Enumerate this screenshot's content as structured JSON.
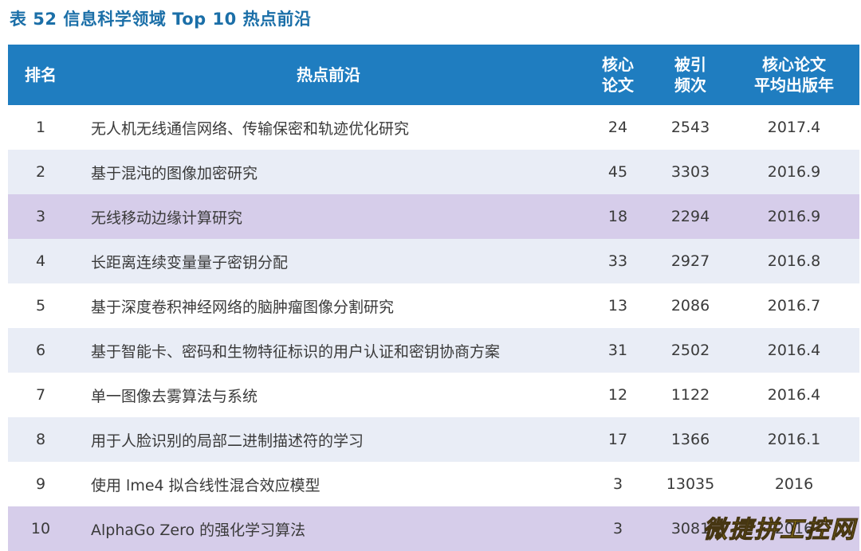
{
  "caption": "表 52 信息科学领域 Top 10 热点前沿",
  "header": {
    "rank": "排名",
    "topic": "热点前沿",
    "core_papers": "核心\n论文",
    "citations": "被引\n频次",
    "avg_year": "核心论文\n平均出版年"
  },
  "row_colors": {
    "white": "#ffffff",
    "blue": "#e9edf6",
    "purple": "#d6cdea",
    "header": "#1f7dc0"
  },
  "rows": [
    {
      "rank": "1",
      "topic": "无人机无线通信网络、传输保密和轨迹优化研究",
      "core": "24",
      "cites": "2543",
      "year": "2017.4",
      "bg": "white"
    },
    {
      "rank": "2",
      "topic": "基于混沌的图像加密研究",
      "core": "45",
      "cites": "3303",
      "year": "2016.9",
      "bg": "blue"
    },
    {
      "rank": "3",
      "topic": "无线移动边缘计算研究",
      "core": "18",
      "cites": "2294",
      "year": "2016.9",
      "bg": "purple"
    },
    {
      "rank": "4",
      "topic": "长距离连续变量量子密钥分配",
      "core": "33",
      "cites": "2927",
      "year": "2016.8",
      "bg": "blue"
    },
    {
      "rank": "5",
      "topic": "基于深度卷积神经网络的脑肿瘤图像分割研究",
      "core": "13",
      "cites": "2086",
      "year": "2016.7",
      "bg": "white"
    },
    {
      "rank": "6",
      "topic": "基于智能卡、密码和生物特征标识的用户认证和密钥协商方案",
      "core": "31",
      "cites": "2502",
      "year": "2016.4",
      "bg": "blue"
    },
    {
      "rank": "7",
      "topic": "单一图像去雾算法与系统",
      "core": "12",
      "cites": "1122",
      "year": "2016.4",
      "bg": "white"
    },
    {
      "rank": "8",
      "topic": "用于人脸识别的局部二进制描述符的学习",
      "core": "17",
      "cites": "1366",
      "year": "2016.1",
      "bg": "blue"
    },
    {
      "rank": "9",
      "topic": "使用 lme4 拟合线性混合效应模型",
      "core": "3",
      "cites": "13035",
      "year": "2016",
      "bg": "white"
    },
    {
      "rank": "10",
      "topic": "AlphaGo Zero 的强化学习算法",
      "core": "3",
      "cites": "3081",
      "year": "2016",
      "bg": "purple"
    }
  ],
  "watermark": "微捷拼工控网"
}
